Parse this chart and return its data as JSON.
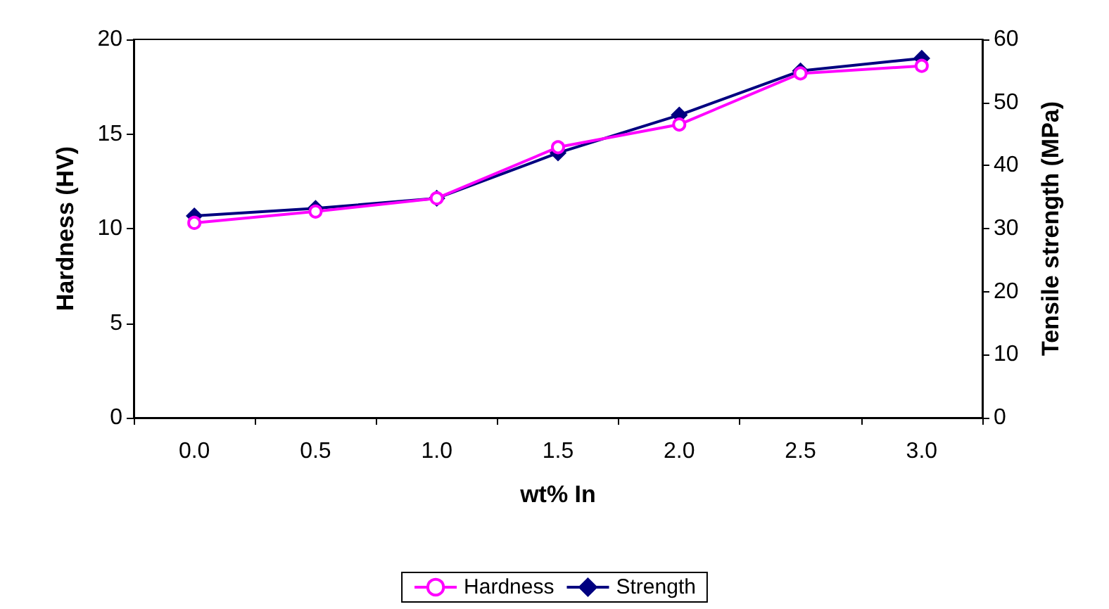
{
  "chart_data": {
    "type": "line",
    "xlabel": "wt% In",
    "ylabel": "Hardness (HV)",
    "y2label": "Tensile strength (MPa)",
    "categories": [
      "0.0",
      "0.5",
      "1.0",
      "1.5",
      "2.0",
      "2.5",
      "3.0"
    ],
    "series": [
      {
        "name": "Hardness",
        "color": "#ff00ff",
        "marker": "circle",
        "values": [
          10.3,
          10.9,
          11.6,
          14.3,
          15.5,
          18.2,
          18.6
        ]
      },
      {
        "name": "Strength",
        "color": "#000080",
        "marker": "diamond",
        "axis": "y2",
        "values": [
          32,
          33.2,
          34.8,
          42,
          48,
          55,
          57
        ]
      }
    ],
    "ylim": [
      0,
      20
    ],
    "yticks": [
      0,
      5,
      10,
      15,
      20
    ],
    "y2lim": [
      0,
      60
    ],
    "y2ticks": [
      0,
      10,
      20,
      30,
      40,
      50,
      60
    ],
    "grid": false,
    "legend": "bottom",
    "line_style": "solid"
  }
}
